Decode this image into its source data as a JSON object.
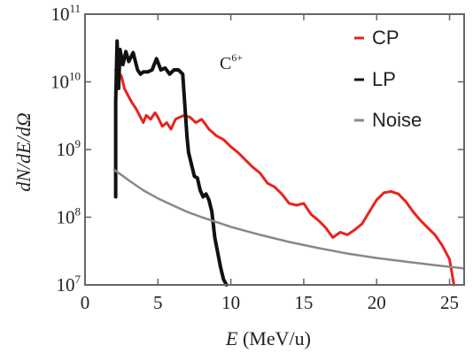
{
  "chart_data": {
    "type": "line",
    "xlabel_italic": "E",
    "xlabel_unit": "(MeV/u)",
    "ylabel": "dN/dE/dΩ",
    "xlim": [
      0,
      26
    ],
    "ylim": [
      10000000,
      100000000000
    ],
    "yscale": "log",
    "x_ticks": [
      "0",
      "5",
      "10",
      "15",
      "20",
      "25"
    ],
    "x_tick_values": [
      0,
      5,
      10,
      15,
      20,
      25
    ],
    "y_ticks": [
      {
        "base": "10",
        "exp": "7",
        "value": 10000000
      },
      {
        "base": "10",
        "exp": "8",
        "value": 100000000
      },
      {
        "base": "10",
        "exp": "9",
        "value": 1000000000
      },
      {
        "base": "10",
        "exp": "10",
        "value": 10000000000
      },
      {
        "base": "10",
        "exp": "11",
        "value": 100000000000
      }
    ],
    "annotation": {
      "text": "C",
      "sup": "6+"
    },
    "legend_position": "top-right",
    "series": [
      {
        "name": "CP",
        "color": "#e8231c",
        "x": [
          2.1,
          2.3,
          2.5,
          2.7,
          3.0,
          3.2,
          3.5,
          3.8,
          4.0,
          4.2,
          4.5,
          4.8,
          5.0,
          5.3,
          5.6,
          5.9,
          6.2,
          6.5,
          6.8,
          7.2,
          7.6,
          8.0,
          8.5,
          9.0,
          9.5,
          10.0,
          10.5,
          11.0,
          11.5,
          12.0,
          12.5,
          13.0,
          13.5,
          14.0,
          14.5,
          15.0,
          15.5,
          16.0,
          16.5,
          17.0,
          17.5,
          18.0,
          18.5,
          19.0,
          19.5,
          20.0,
          20.5,
          21.0,
          21.5,
          22.0,
          22.5,
          23.0,
          23.5,
          24.0,
          24.5,
          25.0,
          25.3
        ],
        "y": [
          15000000000,
          14000000000,
          12000000000,
          8000000000,
          6000000000,
          5000000000,
          4000000000,
          3000000000,
          2500000000,
          3200000000,
          2800000000,
          3500000000,
          3000000000,
          2200000000,
          2500000000,
          2000000000,
          2800000000,
          3000000000,
          3200000000,
          3000000000,
          2500000000,
          2800000000,
          2000000000,
          1600000000,
          1400000000,
          1100000000,
          900000000,
          700000000,
          550000000,
          450000000,
          320000000,
          280000000,
          220000000,
          160000000,
          150000000,
          160000000,
          110000000,
          90000000,
          70000000,
          50000000,
          60000000,
          55000000,
          65000000,
          80000000,
          120000000,
          180000000,
          230000000,
          240000000,
          220000000,
          170000000,
          120000000,
          90000000,
          70000000,
          55000000,
          38000000,
          24000000,
          10000000
        ]
      },
      {
        "name": "LP",
        "color": "#111111",
        "x": [
          2.1,
          2.1,
          2.2,
          2.3,
          2.4,
          2.6,
          2.8,
          3.0,
          3.3,
          3.6,
          3.8,
          4.0,
          4.3,
          4.6,
          4.9,
          5.2,
          5.5,
          5.8,
          6.1,
          6.4,
          6.7,
          6.9,
          7.0,
          7.1,
          7.3,
          7.5,
          7.7,
          7.9,
          8.1,
          8.3,
          8.5,
          8.7,
          8.9,
          9.1,
          9.3,
          9.5,
          9.7
        ],
        "y": [
          200000000,
          5000000000,
          40000000000,
          8000000000,
          30000000000,
          18000000000,
          28000000000,
          20000000000,
          27000000000,
          15000000000,
          13000000000,
          14000000000,
          14000000000,
          15000000000,
          22000000000,
          15000000000,
          16000000000,
          13000000000,
          15000000000,
          15000000000,
          13000000000,
          3000000000,
          1500000000,
          900000000,
          600000000,
          400000000,
          380000000,
          250000000,
          200000000,
          220000000,
          180000000,
          120000000,
          50000000,
          30000000,
          18000000,
          12000000,
          10000000
        ]
      },
      {
        "name": "Noise",
        "color": "#888888",
        "x": [
          2.0,
          2.5,
          3.0,
          4.0,
          5.0,
          6.0,
          7.0,
          8.0,
          9.0,
          10.0,
          12.0,
          14.0,
          16.0,
          18.0,
          20.0,
          22.0,
          24.0,
          26.0
        ],
        "y": [
          500000000,
          420000000,
          350000000,
          250000000,
          190000000,
          150000000,
          120000000,
          100000000,
          85000000,
          72000000,
          55000000,
          43000000,
          35000000,
          29000000,
          25000000,
          22000000,
          19500000,
          17500000
        ]
      }
    ]
  }
}
